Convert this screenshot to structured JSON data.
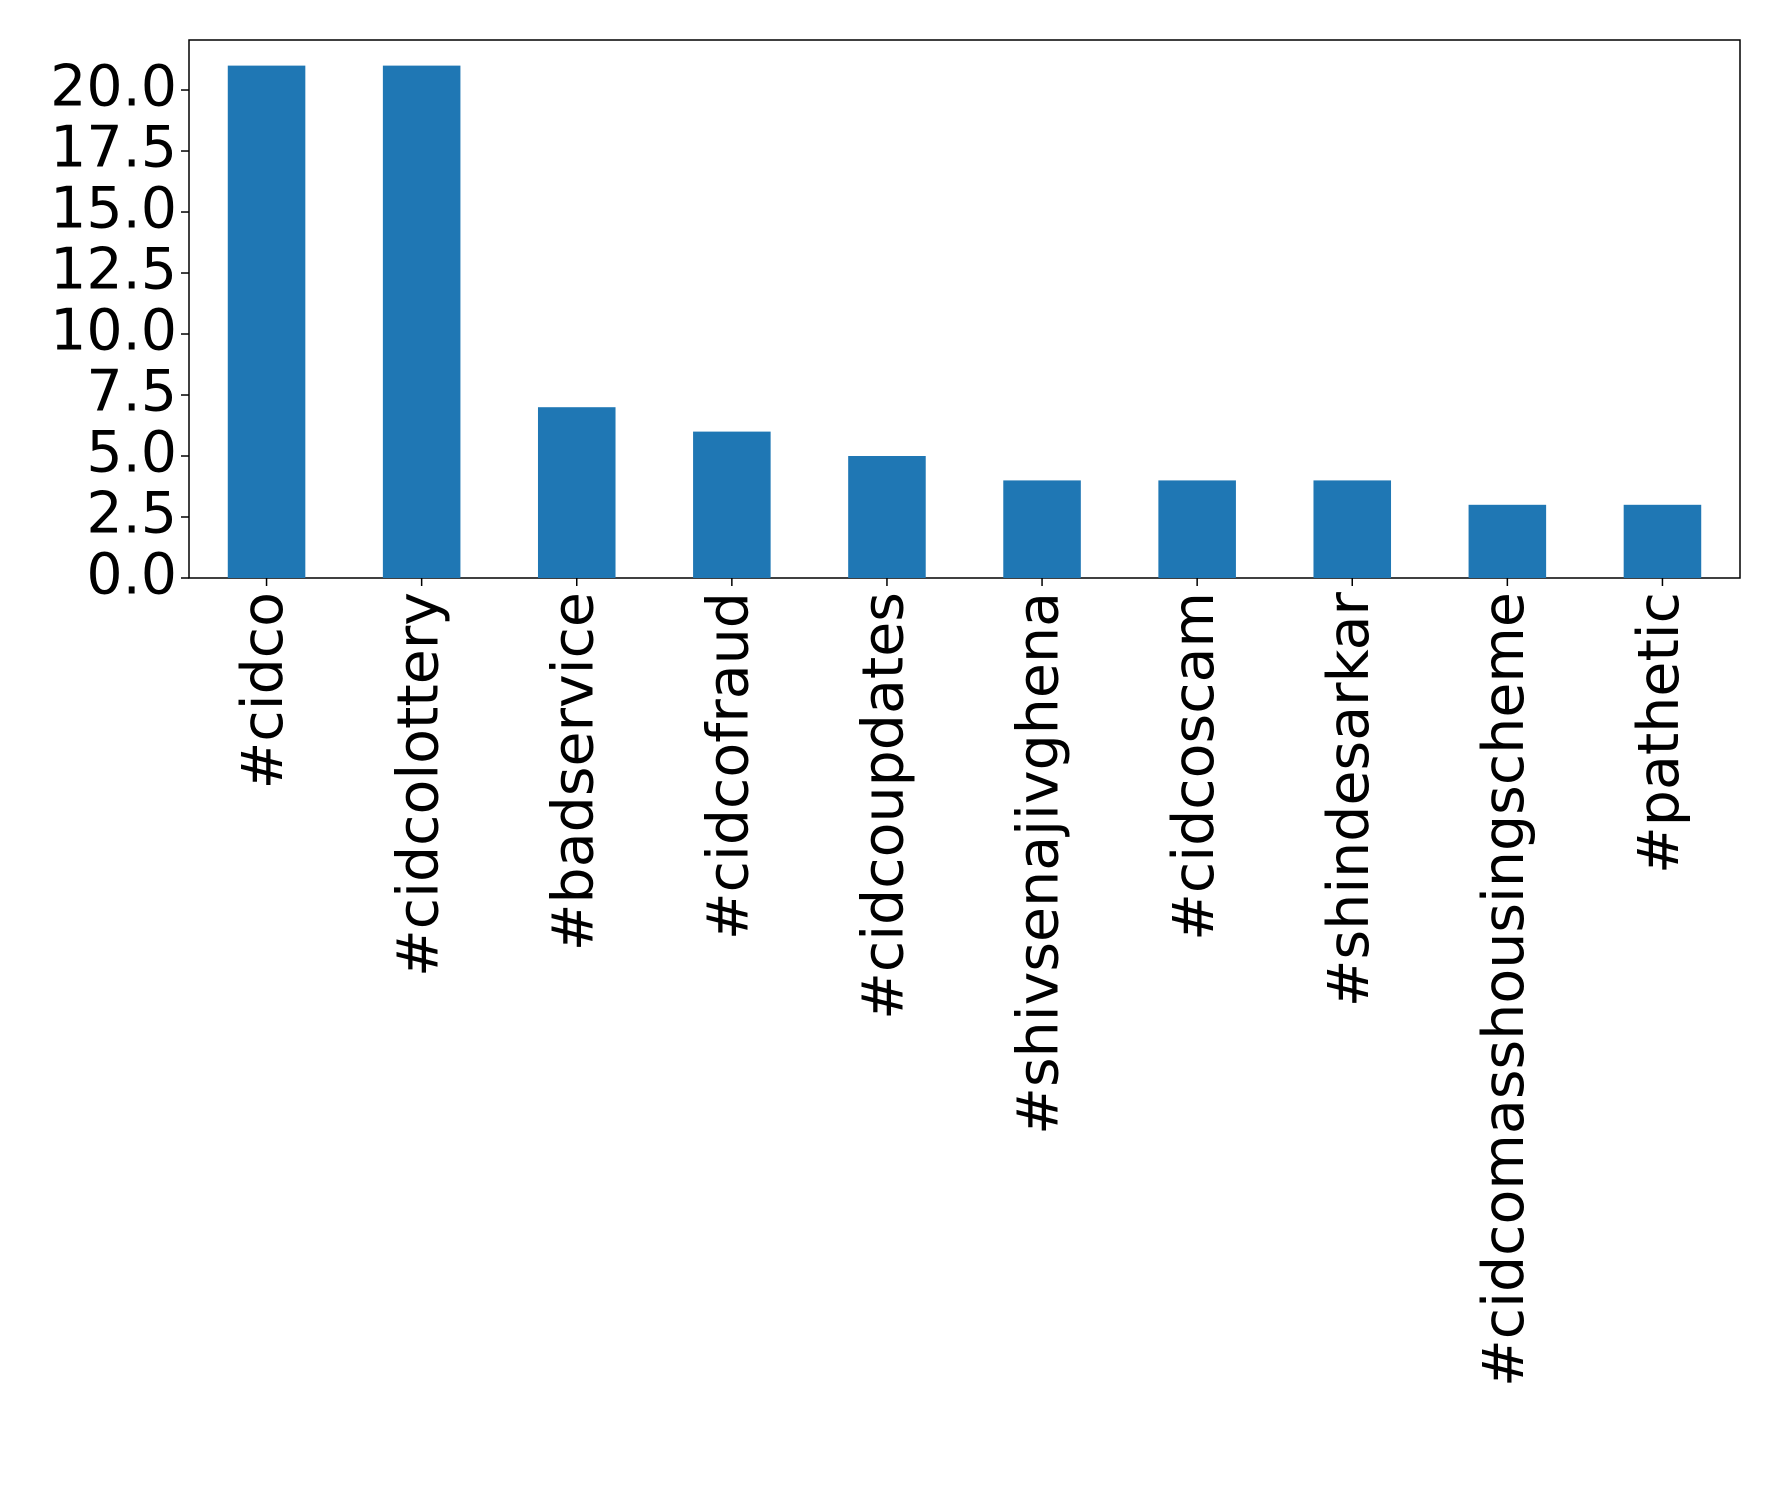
{
  "chart_data": {
    "type": "bar",
    "categories": [
      "#cidco",
      "#cidcolottery",
      "#badservice",
      "#cidcofraud",
      "#cidcoupdates",
      "#shivsenajivghena",
      "#cidcoscam",
      "#shindesarkar",
      "#cidcomasshousingscheme",
      "#pathetic"
    ],
    "values": [
      21,
      21,
      7,
      6,
      5,
      4,
      4,
      4,
      3,
      3
    ],
    "color": "#1f77b4",
    "ylim": [
      0,
      22.05
    ],
    "yticks": [
      {
        "value": 0,
        "label": "0.0"
      },
      2.5,
      {
        "value": 5,
        "label": "5.0"
      },
      7.5,
      {
        "value": 10,
        "label": "10.0"
      },
      12.5,
      {
        "value": 15,
        "label": "15.0"
      },
      17.5,
      {
        "value": 20,
        "label": "20.0"
      }
    ],
    "grid": false
  }
}
